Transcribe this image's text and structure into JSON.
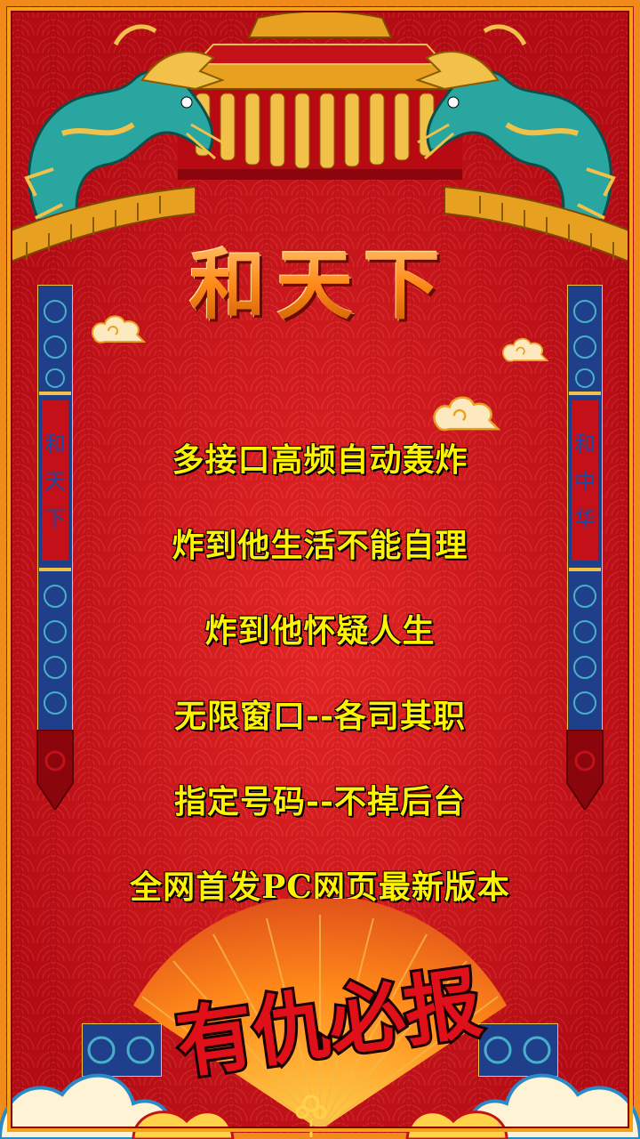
{
  "title": "和天下",
  "pillars": {
    "left_text": [
      "和",
      "天",
      "下"
    ],
    "right_text": [
      "和",
      "中",
      "华"
    ]
  },
  "lines": [
    "多接口高频自动轰炸",
    "炸到他生活不能自理",
    "炸到他怀疑人生",
    "无限窗口--各司其职",
    "指定号码--不掉后台",
    "全网首发PC网页最新版本"
  ],
  "slogan": "有仇必报",
  "colors": {
    "background": "#d3121a",
    "frame": "#f5a21a",
    "text_yellow": "#fff200",
    "title_gold": "#ffb347",
    "slogan_red": "#e0101a",
    "pillar_text_blue": "#1a4aa8"
  }
}
